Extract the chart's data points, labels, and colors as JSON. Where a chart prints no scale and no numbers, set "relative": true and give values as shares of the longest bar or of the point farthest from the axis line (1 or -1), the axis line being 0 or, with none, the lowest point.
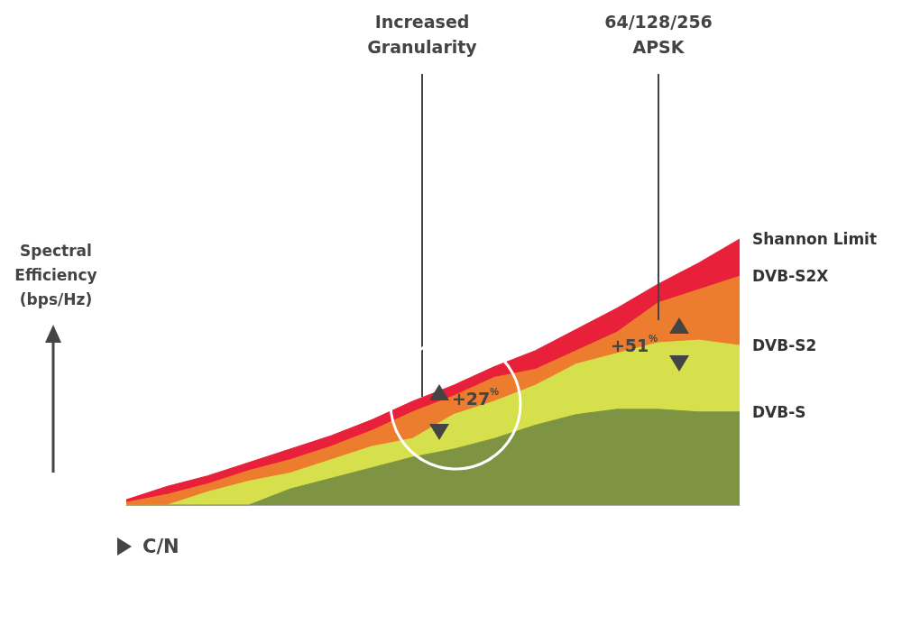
{
  "chart_data": {
    "type": "area",
    "relative": true,
    "xlabel": "C/N",
    "ylabel": "Spectral Efficiency (bps/Hz)",
    "categories": [
      null,
      null,
      null,
      null,
      null,
      null,
      null,
      null,
      null,
      null,
      null,
      null,
      null,
      null,
      null,
      null
    ],
    "series": [
      {
        "name": "Shannon Limit",
        "color": "#e8203a",
        "values": [
          0.02,
          0.07,
          0.11,
          0.16,
          0.21,
          0.26,
          0.32,
          0.39,
          0.45,
          0.52,
          0.58,
          0.66,
          0.74,
          0.83,
          0.91,
          1
        ]
      },
      {
        "name": "DVB-S2X",
        "color": "#ed7d2e",
        "values": [
          0.01,
          0.04,
          0.08,
          0.13,
          0.17,
          0.22,
          0.28,
          0.35,
          0.41,
          0.48,
          0.51,
          0.58,
          0.65,
          0.76,
          0.81,
          0.86
        ]
      },
      {
        "name": "DVB-S2",
        "color": "#d6e04c",
        "values": [
          0,
          0,
          0.05,
          0.09,
          0.12,
          0.17,
          0.22,
          0.25,
          0.34,
          0.39,
          0.45,
          0.53,
          0.57,
          0.61,
          0.62,
          0.6
        ]
      },
      {
        "name": "DVB-S",
        "color": "#7f9443",
        "values": [
          0,
          0,
          0,
          0,
          0.06,
          0.1,
          0.14,
          0.18,
          0.21,
          0.25,
          0.3,
          0.34,
          0.36,
          0.36,
          0.35,
          0.35
        ]
      }
    ],
    "annotations": [
      "Increased Granularity",
      "64/128/256 APSK",
      "+27$^{%}$",
      "+51$^{%}$"
    ],
    "legend": false
  }
}
